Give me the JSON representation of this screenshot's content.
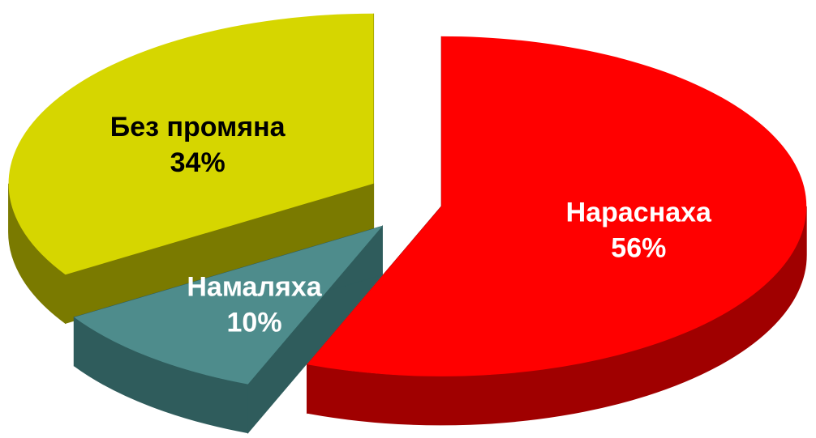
{
  "chart_data": {
    "type": "pie3d",
    "categories": [
      "Нараснаха",
      "Намаляха",
      "Без промяна"
    ],
    "values": [
      56,
      10,
      34
    ],
    "value_labels": [
      "56%",
      "10%",
      "34%"
    ],
    "colors": [
      "#ff0000",
      "#4e8c8c",
      "#d6d600"
    ],
    "side_colors": [
      "#a00000",
      "#2f5c5c",
      "#7a7a00"
    ],
    "label_colors": [
      "#ffffff",
      "#ffffff",
      "#000000"
    ]
  }
}
